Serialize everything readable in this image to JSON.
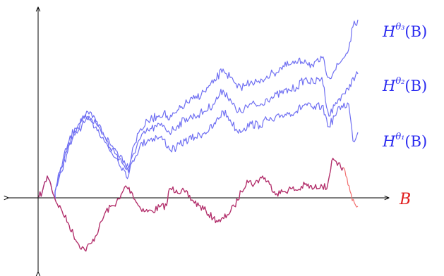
{
  "labels": {
    "b": "B",
    "h3": {
      "base": "H",
      "sup": "θ₃",
      "arg": "(B)"
    },
    "h2": {
      "base": "H",
      "sup": "θ₂",
      "arg": "(B)"
    },
    "h1": {
      "base": "H",
      "sup": "θ₁",
      "arg": "(B)"
    }
  },
  "colors": {
    "axes": "#000000",
    "b_path": "#f26d6d",
    "h_path": "#6f6ff2",
    "overlap": "#b0306f",
    "b_label": "#e01b1b",
    "h_label": "#2a2af0"
  }
}
